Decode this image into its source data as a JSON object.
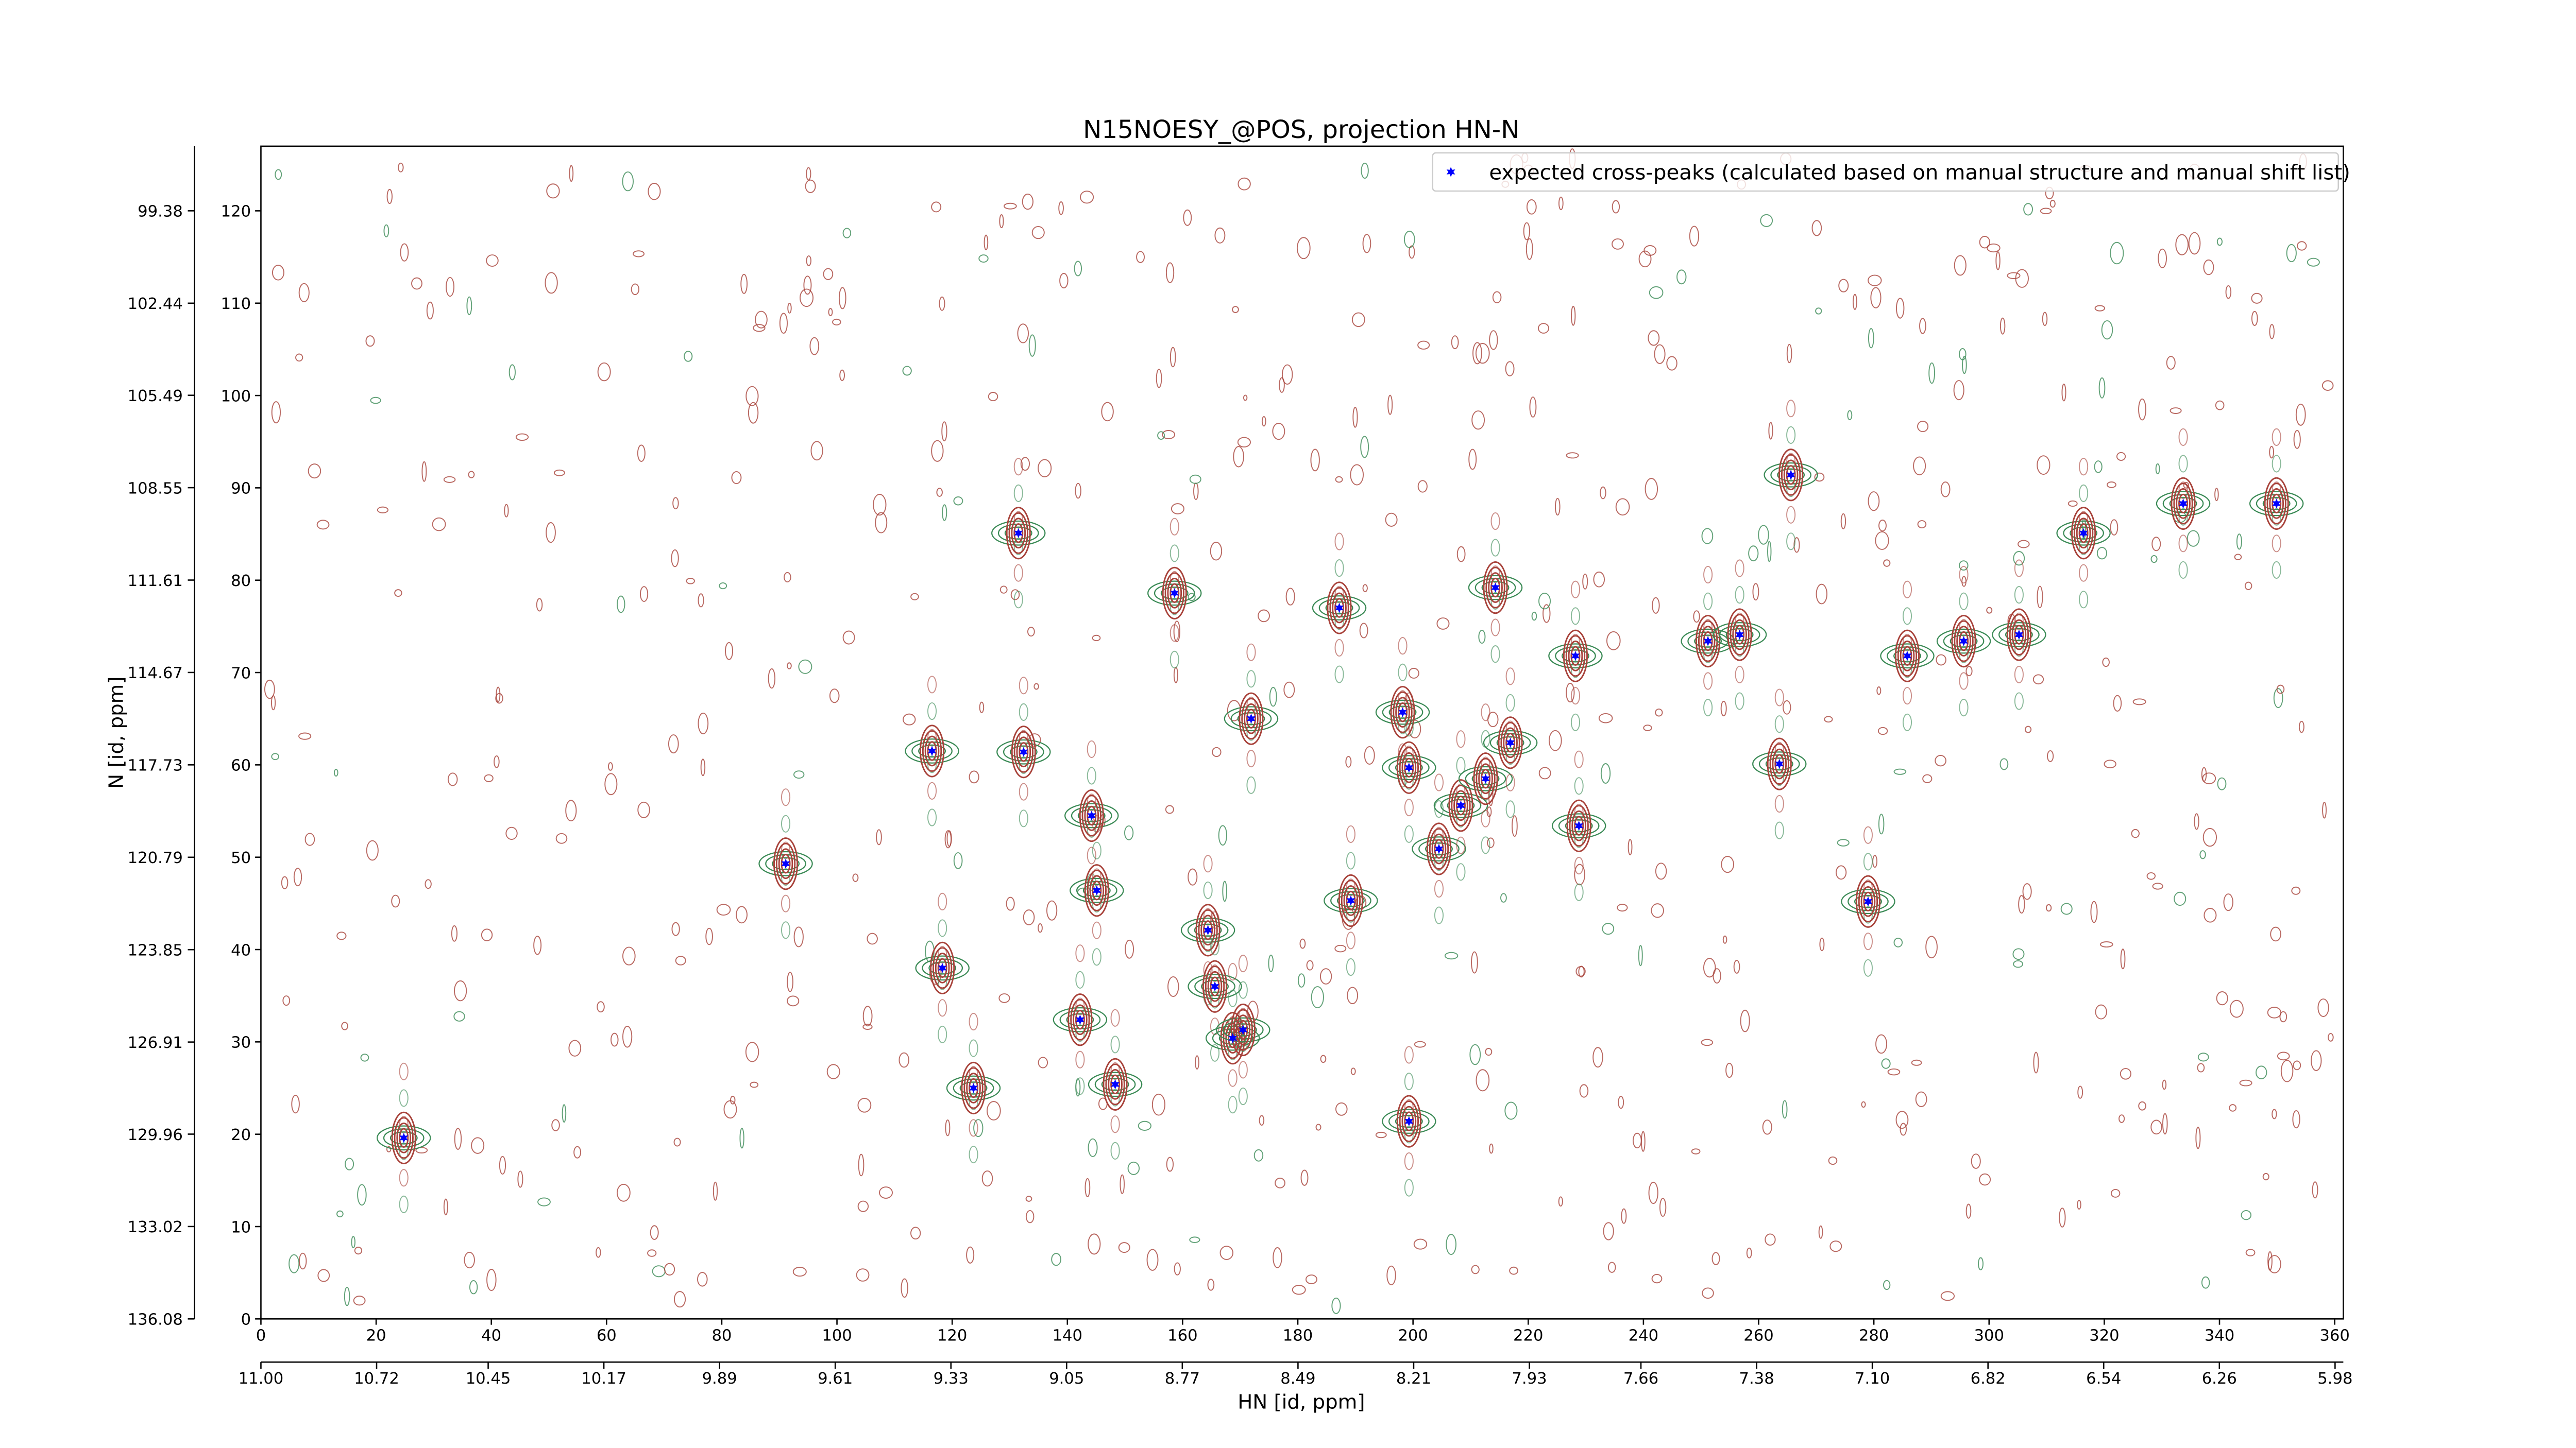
{
  "chart_data": {
    "type": "scatter",
    "title": "N15NOESY_@POS, projection HN-N",
    "x_label": "HN [id, ppm]",
    "y_label": "N [id, ppm]",
    "xlim": [
      0,
      361.5
    ],
    "xticks": [
      0,
      20,
      40,
      60,
      80,
      100,
      120,
      140,
      160,
      180,
      200,
      220,
      240,
      260,
      280,
      300,
      320,
      340,
      360
    ],
    "ylim": [
      0,
      127
    ],
    "yticks": [
      0,
      10,
      20,
      30,
      40,
      50,
      60,
      70,
      80,
      90,
      100,
      110,
      120
    ],
    "x2lim": [
      11.0,
      5.96
    ],
    "x2ticks": [
      {
        "value": 11.0,
        "label": "11.00"
      },
      10.72,
      10.45,
      10.17,
      9.89,
      9.61,
      9.33,
      9.05,
      8.77,
      8.49,
      8.21,
      7.93,
      7.66,
      7.38,
      {
        "value": 7.1,
        "label": "7.10"
      },
      6.82,
      6.54,
      6.26,
      5.98
    ],
    "y2lim": [
      136.08,
      97.24
    ],
    "y2ticks": [
      136.08,
      133.02,
      129.96,
      126.91,
      123.85,
      120.79,
      117.73,
      114.67,
      111.61,
      108.55,
      105.49,
      102.44,
      99.38
    ],
    "legend": "upper right",
    "series": [
      {
        "name": "expected cross-peaks (calculated based on manual structure and manual shift list)",
        "color": "#0000ff",
        "x": [
          24.8,
          91.1,
          116.5,
          118.3,
          123.7,
          131.5,
          132.4,
          142.2,
          144.2,
          145.1,
          148.3,
          158.6,
          164.4,
          165.6,
          168.7,
          170.5,
          171.9,
          187.2,
          189.2,
          198.2,
          199.3,
          199.3,
          204.5,
          208.3,
          212.6,
          214.3,
          216.9,
          228.2,
          228.8,
          251.2,
          256.7,
          263.6,
          265.6,
          279.0,
          285.8,
          295.6,
          305.2,
          316.4,
          333.7,
          349.9
        ],
        "values": [
          19.6,
          49.3,
          61.5,
          38.0,
          25.0,
          85.1,
          61.4,
          32.4,
          54.5,
          46.4,
          25.4,
          78.6,
          42.1,
          36.0,
          30.4,
          31.3,
          65.0,
          77.0,
          45.3,
          65.7,
          59.7,
          21.4,
          50.9,
          55.6,
          58.5,
          79.2,
          62.4,
          71.8,
          53.4,
          73.4,
          74.1,
          60.1,
          91.4,
          45.2,
          71.8,
          73.4,
          74.1,
          85.1,
          88.3,
          88.3
        ]
      }
    ]
  }
}
